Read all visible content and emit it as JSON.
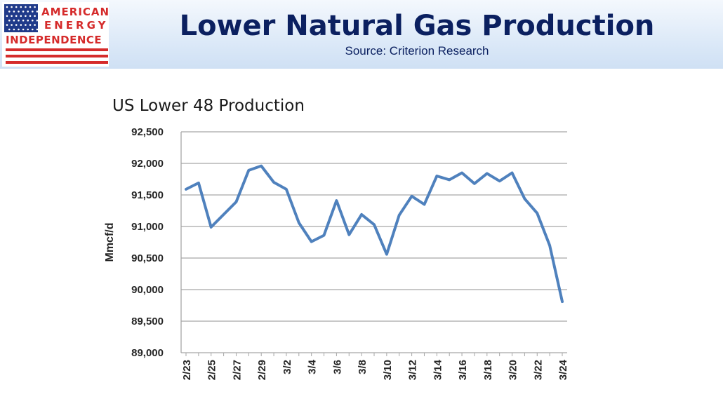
{
  "header": {
    "title": "Lower Natural Gas Production",
    "subtitle": "Source: Criterion Research",
    "logo": {
      "line1": "AMERICAN",
      "line2": "ENERGY",
      "line3": "INDEPENDENCE"
    }
  },
  "colors": {
    "title": "#0b2060",
    "line": "#4f81bd",
    "logo_red": "#d52b2b",
    "logo_blue": "#1f3a8a"
  },
  "chart_data": {
    "type": "line",
    "title": "US Lower 48 Production",
    "ylabel": "Mmcf/d",
    "xlabel": "",
    "ylim": [
      89000,
      92500
    ],
    "yticks": [
      89000,
      89500,
      90000,
      90500,
      91000,
      91500,
      92000,
      92500
    ],
    "ytick_labels": [
      "89,000",
      "89,500",
      "90,000",
      "90,500",
      "91,000",
      "91,500",
      "92,000",
      "92,500"
    ],
    "x_tick_labels": [
      "2/23",
      "2/25",
      "2/27",
      "2/29",
      "3/2",
      "3/4",
      "3/6",
      "3/8",
      "3/10",
      "3/12",
      "3/14",
      "3/16",
      "3/18",
      "3/20",
      "3/22",
      "3/24"
    ],
    "x": [
      "2/23",
      "2/24",
      "2/25",
      "2/26",
      "2/27",
      "2/28",
      "2/29",
      "3/1",
      "3/2",
      "3/3",
      "3/4",
      "3/5",
      "3/6",
      "3/7",
      "3/8",
      "3/9",
      "3/10",
      "3/11",
      "3/12",
      "3/13",
      "3/14",
      "3/15",
      "3/16",
      "3/17",
      "3/18",
      "3/19",
      "3/20",
      "3/21",
      "3/22",
      "3/23",
      "3/24"
    ],
    "series": [
      {
        "values": [
          91590,
          91690,
          90990,
          91190,
          91390,
          91890,
          91960,
          91700,
          91590,
          91060,
          90760,
          90860,
          91410,
          90870,
          91190,
          91030,
          90560,
          91180,
          91480,
          91350,
          91800,
          91740,
          91850,
          91680,
          91840,
          91720,
          91850,
          91440,
          91210,
          90700,
          89810
        ]
      }
    ],
    "grid": true,
    "legend": "none"
  }
}
